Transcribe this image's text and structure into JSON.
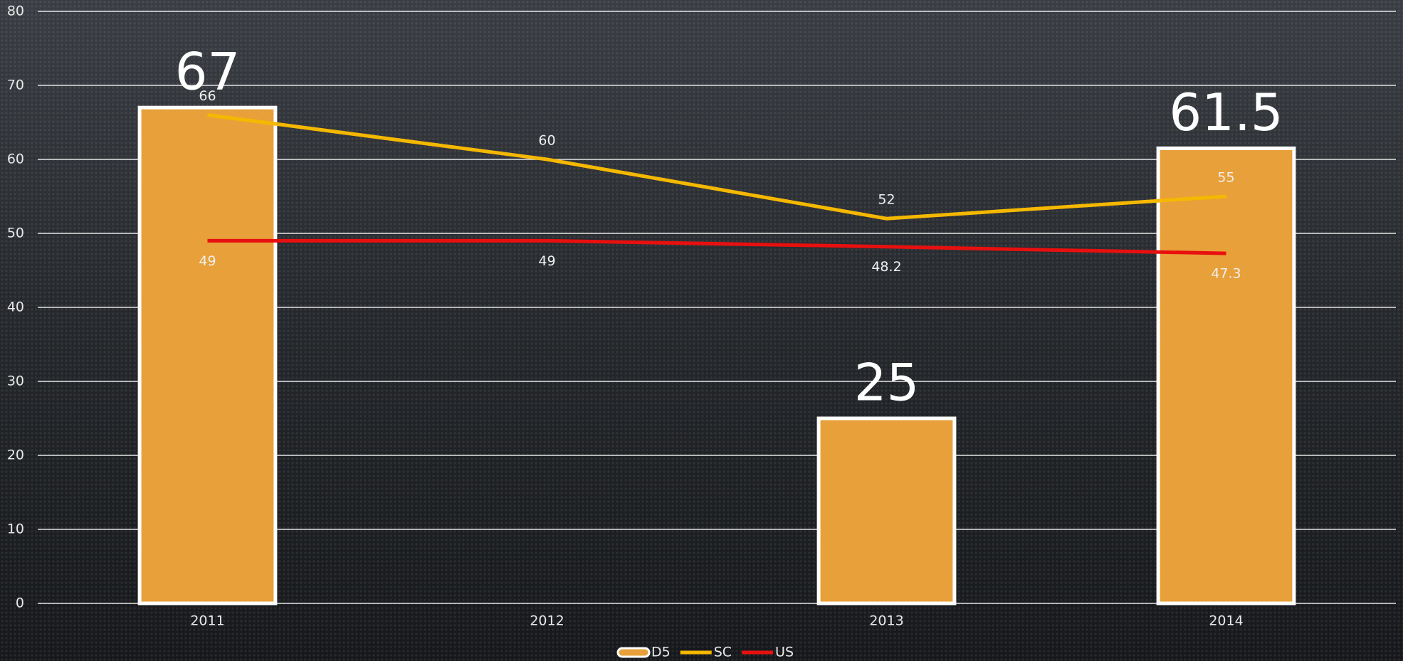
{
  "chart_data": {
    "type": "bar",
    "categories": [
      "2011",
      "2012",
      "2013",
      "2014"
    ],
    "series": [
      {
        "name": "D5",
        "type": "bar",
        "color": "#e8a03a",
        "values": [
          67,
          null,
          25,
          61.5
        ]
      },
      {
        "name": "SC",
        "type": "line",
        "color": "#f5b800",
        "values": [
          66,
          60,
          52,
          55
        ]
      },
      {
        "name": "US",
        "type": "line",
        "color": "#e8100f",
        "values": [
          49,
          49,
          48.2,
          47.3
        ]
      }
    ],
    "ylim": [
      0,
      80
    ],
    "yticks": [
      0,
      10,
      20,
      30,
      40,
      50,
      60,
      70,
      80
    ],
    "grid": true,
    "legend": "bottom"
  }
}
